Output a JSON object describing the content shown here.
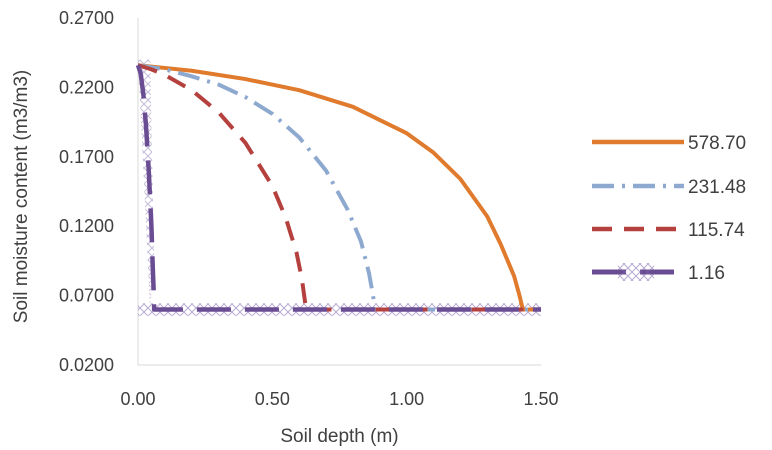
{
  "chart_data": {
    "type": "line",
    "title": "",
    "xlabel": "Soil depth (m)",
    "ylabel": "Soil moisture content (m3/m3)",
    "xlim": [
      0,
      1.5
    ],
    "ylim": [
      0.02,
      0.27
    ],
    "x_ticks": [
      "0.00",
      "0.50",
      "1.00",
      "1.50"
    ],
    "y_ticks": [
      "0.0200",
      "0.0700",
      "0.1200",
      "0.1700",
      "0.2200",
      "0.2700"
    ],
    "grid": false,
    "legend_position": "right",
    "series": [
      {
        "name": "578.70",
        "color": "#E07B2E",
        "dash": "solid",
        "x": [
          0.0,
          0.2,
          0.4,
          0.6,
          0.8,
          1.0,
          1.1,
          1.2,
          1.3,
          1.35,
          1.4,
          1.42,
          1.43,
          1.43,
          1.5
        ],
        "y": [
          0.236,
          0.232,
          0.226,
          0.218,
          0.206,
          0.187,
          0.173,
          0.154,
          0.127,
          0.107,
          0.084,
          0.07,
          0.062,
          0.06,
          0.06
        ]
      },
      {
        "name": "231.48",
        "color": "#8EA9CF",
        "dash": "dash-dot",
        "x": [
          0.0,
          0.1,
          0.2,
          0.3,
          0.4,
          0.5,
          0.6,
          0.7,
          0.78,
          0.83,
          0.86,
          0.875,
          0.88,
          0.88,
          1.5
        ],
        "y": [
          0.236,
          0.233,
          0.228,
          0.222,
          0.213,
          0.201,
          0.184,
          0.16,
          0.132,
          0.109,
          0.086,
          0.07,
          0.062,
          0.06,
          0.06
        ]
      },
      {
        "name": "115.74",
        "color": "#B5413E",
        "dash": "dash",
        "x": [
          0.0,
          0.05,
          0.1,
          0.2,
          0.3,
          0.4,
          0.5,
          0.55,
          0.59,
          0.61,
          0.62,
          0.625,
          0.625,
          1.5
        ],
        "y": [
          0.236,
          0.233,
          0.229,
          0.218,
          0.202,
          0.18,
          0.149,
          0.126,
          0.101,
          0.082,
          0.068,
          0.061,
          0.06,
          0.06
        ]
      },
      {
        "name": "1.16",
        "color": "#6A4C93",
        "dash": "long-dash",
        "x": [
          0.0,
          0.01,
          0.02,
          0.03,
          0.04,
          0.05,
          0.055,
          0.06,
          0.06,
          1.5
        ],
        "y": [
          0.236,
          0.23,
          0.215,
          0.192,
          0.16,
          0.12,
          0.09,
          0.065,
          0.06,
          0.06
        ]
      }
    ]
  }
}
